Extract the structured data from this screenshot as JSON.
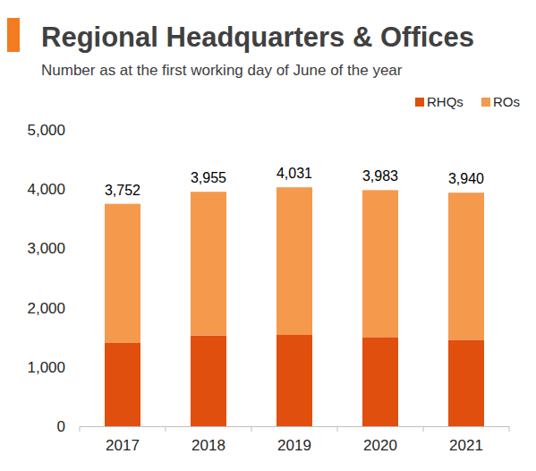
{
  "chart_data": {
    "type": "bar",
    "title": "Regional Headquarters & Offices",
    "subtitle": "Number as at the first working day of June of the year",
    "categories": [
      "2017",
      "2018",
      "2019",
      "2020",
      "2021"
    ],
    "series": [
      {
        "name": "RHQs",
        "color": "#e04f0e",
        "values": [
          1413,
          1530,
          1541,
          1504,
          1457
        ]
      },
      {
        "name": "ROs",
        "color": "#f5994d",
        "values": [
          2339,
          2425,
          2490,
          2479,
          2483
        ]
      }
    ],
    "totals": [
      3752,
      3955,
      4031,
      3983,
      3940
    ],
    "total_labels": [
      "3,752",
      "3,955",
      "4,031",
      "3,983",
      "3,940"
    ],
    "ylim": [
      0,
      5000
    ],
    "yticks": [
      0,
      {
        "value": 1000,
        "label": "1,000"
      },
      {
        "value": 2000,
        "label": "2,000"
      },
      {
        "value": 3000,
        "label": "3,000"
      },
      {
        "value": 4000,
        "label": "4,000"
      },
      {
        "value": 5000,
        "label": "5,000"
      }
    ],
    "stacked": true,
    "grid": false,
    "legend": "top-right"
  }
}
